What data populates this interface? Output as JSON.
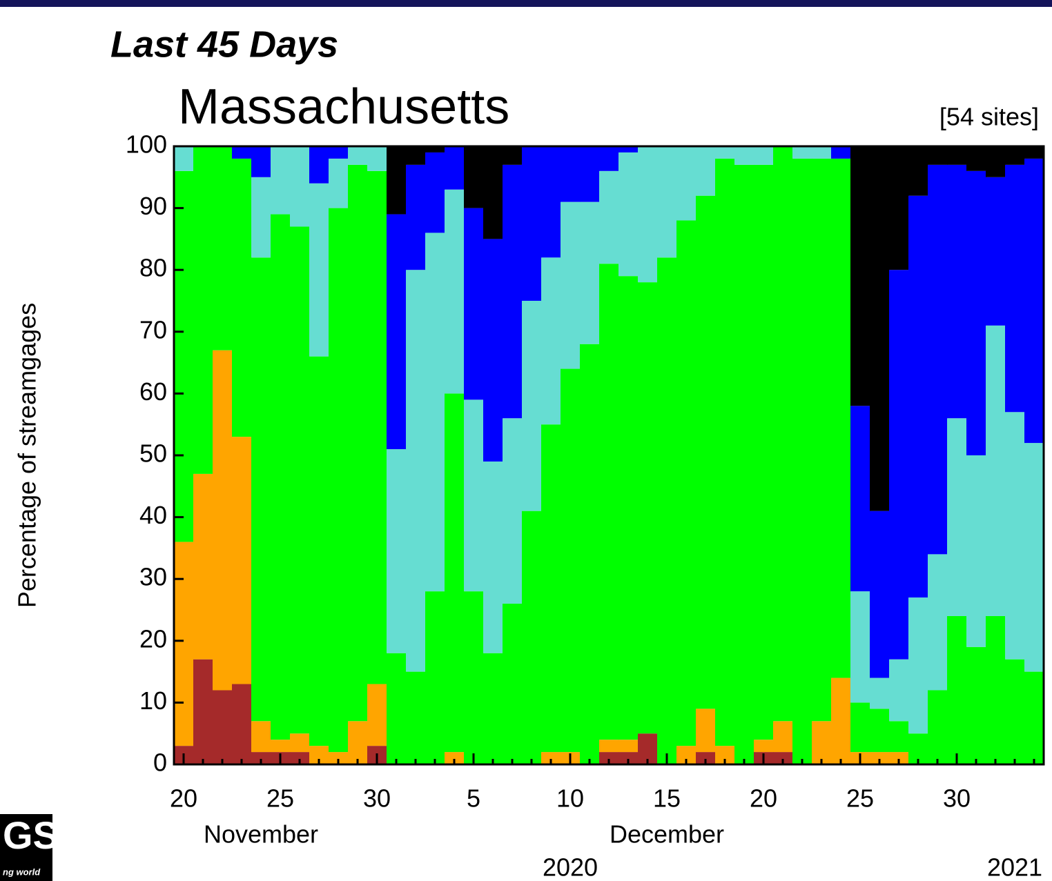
{
  "chart_data": {
    "type": "stacked-bar",
    "header": "Last 45 Days",
    "title": "Massachusetts",
    "annotation": "[54 sites]",
    "y_label": "Percentage of streamgages",
    "categories": [
      "20",
      null,
      null,
      null,
      null,
      "25",
      null,
      null,
      null,
      null,
      "30",
      null,
      null,
      null,
      null,
      "5",
      null,
      null,
      null,
      null,
      "10",
      null,
      null,
      null,
      null,
      "15",
      null,
      null,
      null,
      null,
      "20",
      null,
      null,
      null,
      null,
      "25",
      null,
      null,
      null,
      null,
      "30",
      null,
      null,
      null,
      null
    ],
    "months": [
      "November",
      "December"
    ],
    "years": [
      "2020",
      "2021"
    ],
    "ylim": [
      0,
      100
    ],
    "yticks": [
      0,
      10,
      20,
      30,
      40,
      50,
      60,
      70,
      80,
      90,
      100
    ],
    "series": [
      {
        "color": "#a52a2a",
        "values": [
          3,
          17,
          12,
          13,
          2,
          2,
          2,
          0,
          0,
          0,
          3,
          0,
          0,
          0,
          0,
          0,
          0,
          0,
          0,
          0,
          0,
          0,
          2,
          2,
          5,
          0,
          0,
          2,
          0,
          0,
          2,
          2,
          0,
          0,
          0,
          0,
          0,
          0,
          0,
          0,
          0,
          0,
          0,
          0,
          0
        ]
      },
      {
        "color": "#ffa500",
        "values": [
          33,
          30,
          55,
          40,
          5,
          2,
          3,
          3,
          2,
          7,
          10,
          0,
          0,
          0,
          2,
          0,
          0,
          0,
          0,
          2,
          2,
          0,
          2,
          2,
          0,
          0,
          3,
          7,
          3,
          0,
          2,
          5,
          0,
          7,
          14,
          2,
          2,
          2,
          0,
          0,
          0,
          0,
          0,
          0,
          0
        ]
      },
      {
        "color": "#00ff00",
        "values": [
          60,
          53,
          33,
          45,
          75,
          85,
          82,
          63,
          88,
          90,
          83,
          18,
          15,
          28,
          58,
          28,
          18,
          26,
          41,
          53,
          62,
          68,
          77,
          75,
          73,
          82,
          85,
          83,
          95,
          97,
          93,
          93,
          98,
          91,
          84,
          8,
          7,
          5,
          5,
          12,
          24,
          19,
          24,
          17,
          15
        ]
      },
      {
        "color": "#66ddd2",
        "values": [
          4,
          0,
          0,
          0,
          13,
          11,
          13,
          28,
          8,
          3,
          4,
          33,
          65,
          58,
          33,
          31,
          31,
          30,
          34,
          27,
          27,
          23,
          15,
          20,
          22,
          18,
          12,
          8,
          2,
          3,
          3,
          0,
          2,
          2,
          0,
          18,
          5,
          10,
          22,
          22,
          32,
          31,
          47,
          40,
          37
        ]
      },
      {
        "color": "#0000ff",
        "values": [
          0,
          0,
          0,
          2,
          5,
          0,
          0,
          6,
          2,
          0,
          0,
          38,
          17,
          13,
          7,
          31,
          36,
          41,
          25,
          18,
          9,
          9,
          4,
          1,
          0,
          0,
          0,
          0,
          0,
          0,
          0,
          0,
          0,
          0,
          2,
          30,
          27,
          63,
          65,
          63,
          41,
          46,
          24,
          40,
          46
        ]
      },
      {
        "color": "#000000",
        "values": [
          0,
          0,
          0,
          0,
          0,
          0,
          0,
          0,
          0,
          0,
          0,
          11,
          3,
          1,
          0,
          10,
          15,
          3,
          0,
          0,
          0,
          0,
          0,
          0,
          0,
          0,
          0,
          0,
          0,
          0,
          0,
          0,
          0,
          0,
          0,
          42,
          59,
          20,
          8,
          3,
          3,
          4,
          5,
          3,
          2
        ]
      }
    ]
  },
  "logo": {
    "mark": "GS",
    "tagline": "ng world"
  }
}
